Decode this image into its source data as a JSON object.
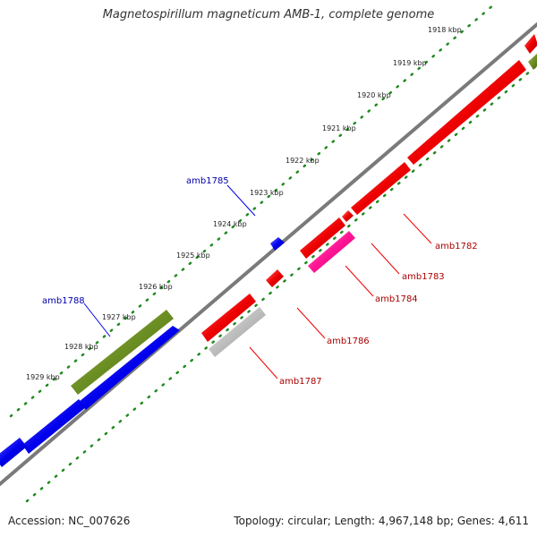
{
  "title": "Magnetospirillum magneticum AMB-1, complete genome",
  "footer": {
    "accession": "Accession: NC_007626",
    "summary": "Topology: circular; Length: 4,967,148 bp; Genes: 4,611"
  },
  "colors": {
    "backbone": "#7a7a7a",
    "scale_ticks": "#1f8a1f",
    "forward_gene": "#0000ee",
    "reverse_gene": "#ee0000",
    "gene_highlight_green": "#6b8e23",
    "gene_magenta": "#ff1493",
    "gene_gray": "#bdbdbd",
    "label_blue": "#0000aa",
    "label_red": "#aa0000"
  },
  "scale_labels": [
    {
      "text": "1918 kbp",
      "kbp": 1918
    },
    {
      "text": "1919 kbp",
      "kbp": 1919
    },
    {
      "text": "1920 kbp",
      "kbp": 1920
    },
    {
      "text": "1921 kbp",
      "kbp": 1921
    },
    {
      "text": "1922 kbp",
      "kbp": 1922
    },
    {
      "text": "1923 kbp",
      "kbp": 1923
    },
    {
      "text": "1924 kbp",
      "kbp": 1924
    },
    {
      "text": "1925 kbp",
      "kbp": 1925
    },
    {
      "text": "1926 kbp",
      "kbp": 1926
    },
    {
      "text": "1927 kbp",
      "kbp": 1927
    },
    {
      "text": "1928 kbp",
      "kbp": 1928
    },
    {
      "text": "1929 kbp",
      "kbp": 1929
    }
  ],
  "gene_labels": [
    {
      "id": "amb1782",
      "text": "amb1782",
      "strand": "reverse"
    },
    {
      "id": "amb1783",
      "text": "amb1783",
      "strand": "reverse"
    },
    {
      "id": "amb1784",
      "text": "amb1784",
      "strand": "reverse"
    },
    {
      "id": "amb1785",
      "text": "amb1785",
      "strand": "forward"
    },
    {
      "id": "amb1786",
      "text": "amb1786",
      "strand": "reverse"
    },
    {
      "id": "amb1787",
      "text": "amb1787",
      "strand": "reverse"
    },
    {
      "id": "amb1788",
      "text": "amb1788",
      "strand": "forward"
    }
  ]
}
